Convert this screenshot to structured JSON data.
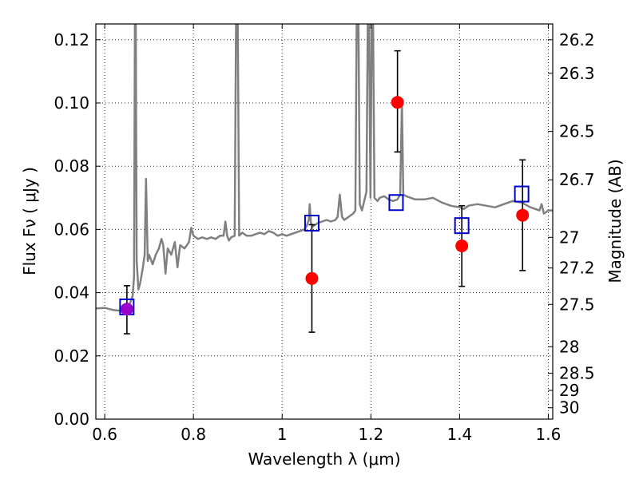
{
  "chart_data": {
    "type": "scatter",
    "xlabel": "Wavelength  λ (μm)",
    "ylabel": "Flux  Fν  ( μJy )",
    "ylabel_right": "Magnitude (AB)",
    "xlim": [
      0.58,
      1.61
    ],
    "ylim": [
      0.0,
      0.125
    ],
    "grid": true,
    "x_ticks": [
      0.6,
      0.8,
      1.0,
      1.2,
      1.4,
      1.6
    ],
    "x_tick_labels": [
      "0.6",
      "0.8",
      "1",
      "1.2",
      "1.4",
      "1.6"
    ],
    "y_ticks": [
      0.0,
      0.02,
      0.04,
      0.06,
      0.08,
      0.1,
      0.12
    ],
    "y_tick_labels": [
      "0.00",
      "0.02",
      "0.04",
      "0.06",
      "0.08",
      "0.10",
      "0.12"
    ],
    "right_ticks": [
      {
        "label": "26.2",
        "flux": 0.12
      },
      {
        "label": "26.3",
        "flux": 0.1094
      },
      {
        "label": "26.5",
        "flux": 0.091
      },
      {
        "label": "26.7",
        "flux": 0.0757
      },
      {
        "label": "27",
        "flux": 0.0575
      },
      {
        "label": "27.2",
        "flux": 0.0478
      },
      {
        "label": "27.5",
        "flux": 0.0363
      },
      {
        "label": "28",
        "flux": 0.0229
      },
      {
        "label": "28.5",
        "flux": 0.0145
      },
      {
        "label": "29",
        "flux": 0.0091
      },
      {
        "label": "30",
        "flux": 0.0036
      }
    ],
    "series": [
      {
        "kind": "spectrum",
        "color": "#808080",
        "points": [
          [
            0.58,
            0.035
          ],
          [
            0.6,
            0.0352
          ],
          [
            0.62,
            0.0345
          ],
          [
            0.635,
            0.0343
          ],
          [
            0.65,
            0.0346
          ],
          [
            0.658,
            0.037
          ],
          [
            0.663,
            0.039
          ],
          [
            0.666,
            0.045
          ],
          [
            0.668,
            0.125
          ],
          [
            0.67,
            0.125
          ],
          [
            0.672,
            0.05
          ],
          [
            0.676,
            0.041
          ],
          [
            0.68,
            0.043
          ],
          [
            0.686,
            0.048
          ],
          [
            0.69,
            0.052
          ],
          [
            0.693,
            0.076
          ],
          [
            0.697,
            0.05
          ],
          [
            0.7,
            0.052
          ],
          [
            0.708,
            0.049
          ],
          [
            0.715,
            0.052
          ],
          [
            0.722,
            0.054
          ],
          [
            0.728,
            0.057
          ],
          [
            0.732,
            0.055
          ],
          [
            0.737,
            0.046
          ],
          [
            0.742,
            0.054
          ],
          [
            0.75,
            0.052
          ],
          [
            0.758,
            0.056
          ],
          [
            0.764,
            0.048
          ],
          [
            0.77,
            0.055
          ],
          [
            0.78,
            0.054
          ],
          [
            0.79,
            0.056
          ],
          [
            0.795,
            0.0605
          ],
          [
            0.8,
            0.058
          ],
          [
            0.81,
            0.057
          ],
          [
            0.82,
            0.0575
          ],
          [
            0.83,
            0.057
          ],
          [
            0.84,
            0.0575
          ],
          [
            0.85,
            0.057
          ],
          [
            0.86,
            0.058
          ],
          [
            0.868,
            0.058
          ],
          [
            0.872,
            0.0625
          ],
          [
            0.876,
            0.058
          ],
          [
            0.88,
            0.0565
          ],
          [
            0.885,
            0.0575
          ],
          [
            0.893,
            0.058
          ],
          [
            0.896,
            0.125
          ],
          [
            0.9,
            0.125
          ],
          [
            0.903,
            0.058
          ],
          [
            0.91,
            0.059
          ],
          [
            0.92,
            0.058
          ],
          [
            0.93,
            0.058
          ],
          [
            0.94,
            0.0585
          ],
          [
            0.95,
            0.059
          ],
          [
            0.96,
            0.0585
          ],
          [
            0.97,
            0.0595
          ],
          [
            0.98,
            0.059
          ],
          [
            0.99,
            0.058
          ],
          [
            1.0,
            0.0585
          ],
          [
            1.01,
            0.058
          ],
          [
            1.02,
            0.0585
          ],
          [
            1.03,
            0.059
          ],
          [
            1.04,
            0.0595
          ],
          [
            1.05,
            0.06
          ],
          [
            1.055,
            0.061
          ],
          [
            1.06,
            0.063
          ],
          [
            1.062,
            0.068
          ],
          [
            1.065,
            0.062
          ],
          [
            1.07,
            0.061
          ],
          [
            1.08,
            0.062
          ],
          [
            1.09,
            0.0625
          ],
          [
            1.1,
            0.063
          ],
          [
            1.11,
            0.0625
          ],
          [
            1.12,
            0.063
          ],
          [
            1.125,
            0.064
          ],
          [
            1.13,
            0.071
          ],
          [
            1.135,
            0.064
          ],
          [
            1.14,
            0.063
          ],
          [
            1.15,
            0.064
          ],
          [
            1.16,
            0.065
          ],
          [
            1.165,
            0.066
          ],
          [
            1.168,
            0.125
          ],
          [
            1.172,
            0.125
          ],
          [
            1.175,
            0.068
          ],
          [
            1.18,
            0.066
          ],
          [
            1.185,
            0.069
          ],
          [
            1.19,
            0.072
          ],
          [
            1.193,
            0.125
          ],
          [
            1.196,
            0.125
          ],
          [
            1.199,
            0.07
          ],
          [
            1.202,
            0.125
          ],
          [
            1.205,
            0.125
          ],
          [
            1.208,
            0.07
          ],
          [
            1.215,
            0.069
          ],
          [
            1.22,
            0.07
          ],
          [
            1.23,
            0.0705
          ],
          [
            1.24,
            0.0695
          ],
          [
            1.25,
            0.069
          ],
          [
            1.26,
            0.0695
          ],
          [
            1.266,
            0.071
          ],
          [
            1.27,
            0.1
          ],
          [
            1.273,
            0.071
          ],
          [
            1.28,
            0.0705
          ],
          [
            1.29,
            0.07
          ],
          [
            1.3,
            0.0695
          ],
          [
            1.32,
            0.0695
          ],
          [
            1.34,
            0.07
          ],
          [
            1.36,
            0.0685
          ],
          [
            1.38,
            0.0675
          ],
          [
            1.4,
            0.067
          ],
          [
            1.41,
            0.0665
          ],
          [
            1.42,
            0.0675
          ],
          [
            1.44,
            0.068
          ],
          [
            1.46,
            0.0675
          ],
          [
            1.48,
            0.067
          ],
          [
            1.5,
            0.068
          ],
          [
            1.52,
            0.069
          ],
          [
            1.54,
            0.0685
          ],
          [
            1.56,
            0.067
          ],
          [
            1.58,
            0.066
          ],
          [
            1.585,
            0.068
          ],
          [
            1.59,
            0.065
          ],
          [
            1.6,
            0.066
          ],
          [
            1.61,
            0.066
          ]
        ]
      },
      {
        "kind": "model_squares",
        "color": "#0000cc",
        "points": [
          [
            0.65,
            0.0355
          ],
          [
            1.067,
            0.062
          ],
          [
            1.257,
            0.0685
          ],
          [
            1.405,
            0.0612
          ],
          [
            1.54,
            0.0712
          ]
        ]
      },
      {
        "kind": "observed_points",
        "color": "#ff0000",
        "points": [
          {
            "x": 1.067,
            "y": 0.0445,
            "err": [
              0.0275,
              0.0615
            ]
          },
          {
            "x": 1.26,
            "y": 0.1002,
            "err": [
              0.0845,
              0.1165
            ]
          },
          {
            "x": 1.405,
            "y": 0.0548,
            "err": [
              0.042,
              0.0675
            ]
          },
          {
            "x": 1.542,
            "y": 0.0645,
            "err": [
              0.047,
              0.082
            ]
          }
        ]
      },
      {
        "kind": "observed_points_violet",
        "color": "#9900cc",
        "points": [
          {
            "x": 0.65,
            "y": 0.0348,
            "err": [
              0.027,
              0.0422
            ]
          }
        ]
      }
    ]
  }
}
